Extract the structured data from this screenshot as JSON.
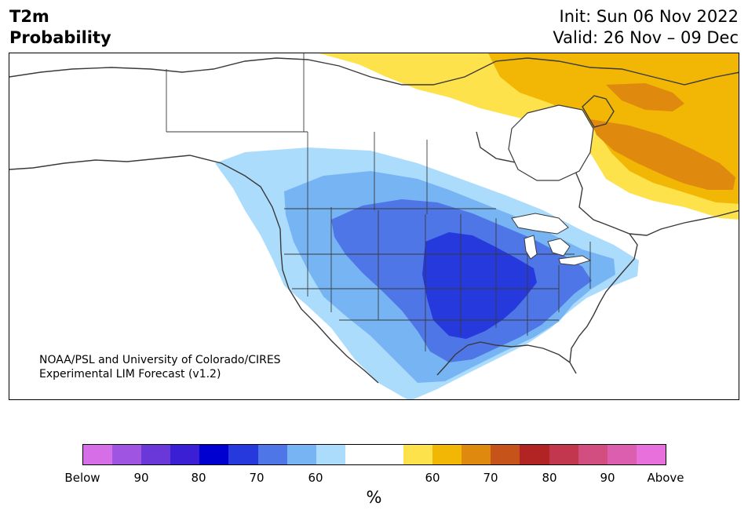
{
  "header": {
    "variable": "T2m",
    "metric": "Probability",
    "init": "Init: Sun 06 Nov 2022",
    "valid": "Valid: 26 Nov – 09 Dec"
  },
  "map": {
    "region": "North America",
    "credit_line1": "NOAA/PSL and University of Colorado/CIRES",
    "credit_line2": "Experimental LIM Forecast (v1.2)",
    "colors": {
      "below_60": "#acdcfc",
      "below_70": "#76b4f4",
      "below_75": "#4f76e6",
      "below_80": "#2639dc",
      "above_60": "#fde24c",
      "above_65": "#f2b705",
      "above_70": "#df890f",
      "land": "#ffffff",
      "border": "#3a3a3a"
    }
  },
  "colorbar": {
    "colors": [
      "#d66ee8",
      "#a055e2",
      "#6a38d8",
      "#3a1fd4",
      "#0000d0",
      "#2639dc",
      "#4f76e6",
      "#76b4f4",
      "#acdcfc",
      "#ffffff",
      "#ffffff",
      "#fde24c",
      "#f2b705",
      "#df890f",
      "#c6531a",
      "#b22424",
      "#c2364e",
      "#d24e80",
      "#dc5eae",
      "#e870dc"
    ],
    "tick_labels": [
      "Below",
      "90",
      "80",
      "70",
      "60",
      "60",
      "70",
      "80",
      "90",
      "Above"
    ],
    "units": "%"
  }
}
